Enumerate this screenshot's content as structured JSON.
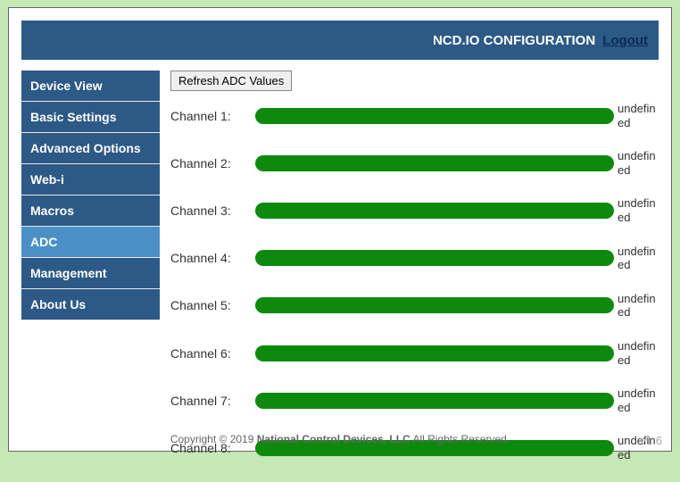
{
  "header": {
    "title": "NCD.IO CONFIGURATION",
    "logout": "Logout"
  },
  "sidebar": {
    "items": [
      {
        "label": "Device View",
        "active": false
      },
      {
        "label": "Basic Settings",
        "active": false
      },
      {
        "label": "Advanced Options",
        "active": false
      },
      {
        "label": "Web-i",
        "active": false
      },
      {
        "label": "Macros",
        "active": false
      },
      {
        "label": "ADC",
        "active": true
      },
      {
        "label": "Management",
        "active": false
      },
      {
        "label": "About Us",
        "active": false
      }
    ]
  },
  "main": {
    "refresh_label": "Refresh ADC Values",
    "channels": [
      {
        "label": "Channel 1:",
        "value": "undefined",
        "bar_pct": 100,
        "bar_color": "#0d8a0d"
      },
      {
        "label": "Channel 2:",
        "value": "undefined",
        "bar_pct": 100,
        "bar_color": "#0d8a0d"
      },
      {
        "label": "Channel 3:",
        "value": "undefined",
        "bar_pct": 100,
        "bar_color": "#0d8a0d"
      },
      {
        "label": "Channel 4:",
        "value": "undefined",
        "bar_pct": 100,
        "bar_color": "#0d8a0d"
      },
      {
        "label": "Channel 5:",
        "value": "undefined",
        "bar_pct": 100,
        "bar_color": "#0d8a0d"
      },
      {
        "label": "Channel 6:",
        "value": "undefined",
        "bar_pct": 100,
        "bar_color": "#0d8a0d"
      },
      {
        "label": "Channel 7:",
        "value": "undefined",
        "bar_pct": 100,
        "bar_color": "#0d8a0d"
      },
      {
        "label": "Channel 8:",
        "value": "undefined",
        "bar_pct": 100,
        "bar_color": "#0d8a0d"
      }
    ]
  },
  "footer": {
    "prefix": "Copyright © 2019 ",
    "company": "National Control Devices, LLC",
    "suffix": " All Rights Reserved."
  },
  "version": "v1.6"
}
